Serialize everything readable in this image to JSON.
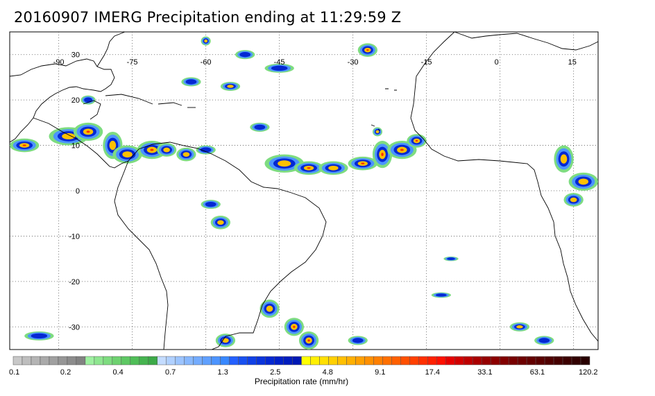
{
  "title": "20160907 IMERG Precipitation ending at 11:29:59 Z",
  "map": {
    "type": "precipitation map",
    "lon_range": [
      -100,
      20
    ],
    "lat_range": [
      -35,
      35
    ],
    "lon_ticks": [
      {
        "value": -90,
        "label": "-90"
      },
      {
        "value": -75,
        "label": "-75"
      },
      {
        "value": -60,
        "label": "-60"
      },
      {
        "value": -45,
        "label": "-45"
      },
      {
        "value": -30,
        "label": "-30"
      },
      {
        "value": -15,
        "label": "-15"
      },
      {
        "value": 0,
        "label": "0"
      },
      {
        "value": 15,
        "label": "15"
      }
    ],
    "lat_ticks": [
      {
        "value": 30,
        "label": "30"
      },
      {
        "value": 20,
        "label": "20"
      },
      {
        "value": 10,
        "label": "10"
      },
      {
        "value": 0,
        "label": "0"
      },
      {
        "value": -10,
        "label": "-10"
      },
      {
        "value": -20,
        "label": "-20"
      },
      {
        "value": -30,
        "label": "-30"
      }
    ],
    "grid": "dotted",
    "coastline_color": "#000000"
  },
  "colorbar": {
    "label": "Precipitation rate (mm/hr)",
    "tick_labels": [
      "0.1",
      "0.2",
      "0.4",
      "0.7",
      "1.3",
      "2.5",
      "4.8",
      "9.1",
      "17.4",
      "33.1",
      "63.1",
      "120.2"
    ],
    "colors": [
      "#c8c8c8",
      "#bebebe",
      "#b4b4b4",
      "#aaaaaa",
      "#a0a0a0",
      "#969696",
      "#8c8c8c",
      "#828282",
      "#9ef0a0",
      "#8ee690",
      "#7edc80",
      "#6ed270",
      "#5ec864",
      "#50be58",
      "#46b450",
      "#3caa48",
      "#c4dcff",
      "#b0d0ff",
      "#9cc4ff",
      "#88b8ff",
      "#74acff",
      "#60a0ff",
      "#4c94ff",
      "#3888ff",
      "#2460ff",
      "#1850f0",
      "#1040e6",
      "#0a34dc",
      "#0428d2",
      "#0020c8",
      "#001cbe",
      "#0018b4",
      "#ffff00",
      "#fff000",
      "#ffe000",
      "#ffd000",
      "#ffc000",
      "#ffb000",
      "#ffa000",
      "#ff9000",
      "#ff8000",
      "#ff7000",
      "#ff6000",
      "#ff5000",
      "#ff4000",
      "#ff3000",
      "#ff2000",
      "#ff1000",
      "#e60000",
      "#d20000",
      "#be0000",
      "#aa0000",
      "#960000",
      "#8c0000",
      "#820000",
      "#780000",
      "#6e0000",
      "#640000",
      "#5a0000",
      "#500000",
      "#460000",
      "#3c0000",
      "#320000",
      "#280000"
    ]
  },
  "precip_cells": [
    {
      "lon": -97,
      "lat": 10,
      "rx": 3,
      "ry": 1.5,
      "level": 3
    },
    {
      "lon": -88,
      "lat": 12,
      "rx": 4,
      "ry": 2,
      "level": 2
    },
    {
      "lon": -84,
      "lat": 13,
      "rx": 3,
      "ry": 2,
      "level": 3
    },
    {
      "lon": -79,
      "lat": 10,
      "rx": 2,
      "ry": 3,
      "level": 2
    },
    {
      "lon": -76,
      "lat": 8,
      "rx": 3,
      "ry": 2,
      "level": 2
    },
    {
      "lon": -71,
      "lat": 9,
      "rx": 3,
      "ry": 2,
      "level": 3
    },
    {
      "lon": -68,
      "lat": 9,
      "rx": 2,
      "ry": 1.5,
      "level": 2
    },
    {
      "lon": -64,
      "lat": 8,
      "rx": 2,
      "ry": 1.5,
      "level": 2
    },
    {
      "lon": -60,
      "lat": 9,
      "rx": 2,
      "ry": 1,
      "level": 1
    },
    {
      "lon": -60,
      "lat": 33,
      "rx": 1,
      "ry": 1,
      "level": 2
    },
    {
      "lon": -52,
      "lat": 30,
      "rx": 2,
      "ry": 1,
      "level": 1
    },
    {
      "lon": -55,
      "lat": 23,
      "rx": 2,
      "ry": 1,
      "level": 2
    },
    {
      "lon": -45,
      "lat": 27,
      "rx": 3,
      "ry": 1,
      "level": 1
    },
    {
      "lon": -49,
      "lat": 14,
      "rx": 2,
      "ry": 1,
      "level": 1
    },
    {
      "lon": -44,
      "lat": 6,
      "rx": 4,
      "ry": 2,
      "level": 2
    },
    {
      "lon": -39,
      "lat": 5,
      "rx": 3,
      "ry": 1.5,
      "level": 3
    },
    {
      "lon": -34,
      "lat": 5,
      "rx": 3,
      "ry": 1.5,
      "level": 2
    },
    {
      "lon": -28,
      "lat": 6,
      "rx": 3,
      "ry": 1.5,
      "level": 3
    },
    {
      "lon": -24,
      "lat": 8,
      "rx": 2,
      "ry": 3,
      "level": 3
    },
    {
      "lon": -20,
      "lat": 9,
      "rx": 3,
      "ry": 2,
      "level": 3
    },
    {
      "lon": -17,
      "lat": 11,
      "rx": 2,
      "ry": 1.5,
      "level": 3
    },
    {
      "lon": -25,
      "lat": 13,
      "rx": 1,
      "ry": 1,
      "level": 2
    },
    {
      "lon": -27,
      "lat": 31,
      "rx": 2,
      "ry": 1.5,
      "level": 3
    },
    {
      "lon": -57,
      "lat": -7,
      "rx": 2,
      "ry": 1.5,
      "level": 2
    },
    {
      "lon": -59,
      "lat": -3,
      "rx": 2,
      "ry": 1,
      "level": 1
    },
    {
      "lon": 13,
      "lat": 7,
      "rx": 2,
      "ry": 3,
      "level": 2
    },
    {
      "lon": 17,
      "lat": 2,
      "rx": 3,
      "ry": 2,
      "level": 2
    },
    {
      "lon": 15,
      "lat": -2,
      "rx": 2,
      "ry": 1.5,
      "level": 2
    },
    {
      "lon": -47,
      "lat": -26,
      "rx": 2,
      "ry": 2,
      "level": 2
    },
    {
      "lon": -42,
      "lat": -30,
      "rx": 2,
      "ry": 2,
      "level": 3
    },
    {
      "lon": -39,
      "lat": -33,
      "rx": 2,
      "ry": 2,
      "level": 3
    },
    {
      "lon": -56,
      "lat": -33,
      "rx": 2,
      "ry": 1.5,
      "level": 2
    },
    {
      "lon": -29,
      "lat": -33,
      "rx": 2,
      "ry": 1,
      "level": 1
    },
    {
      "lon": 4,
      "lat": -30,
      "rx": 2,
      "ry": 1,
      "level": 2
    },
    {
      "lon": 9,
      "lat": -33,
      "rx": 2,
      "ry": 1,
      "level": 1
    },
    {
      "lon": -94,
      "lat": -32,
      "rx": 3,
      "ry": 1,
      "level": 1
    },
    {
      "lon": -12,
      "lat": -23,
      "rx": 2,
      "ry": 0.6,
      "level": 1
    },
    {
      "lon": -10,
      "lat": -15,
      "rx": 1.5,
      "ry": 0.5,
      "level": 1
    },
    {
      "lon": -84,
      "lat": 20,
      "rx": 1.5,
      "ry": 1,
      "level": 1
    },
    {
      "lon": -63,
      "lat": 24,
      "rx": 2,
      "ry": 1,
      "level": 1
    }
  ]
}
